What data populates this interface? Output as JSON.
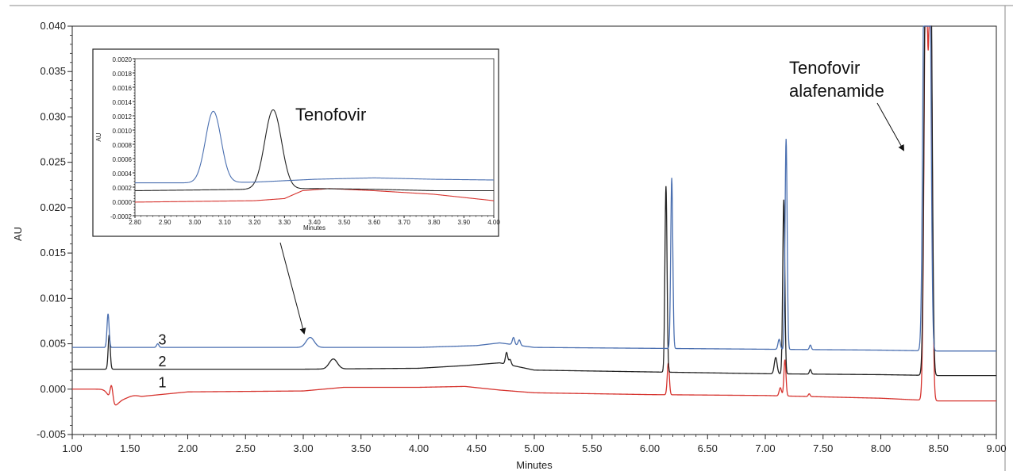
{
  "chart_data": {
    "type": "line",
    "xlabel": "Minutes",
    "ylabel": "AU",
    "xlim": [
      1.0,
      9.0
    ],
    "ylim": [
      -0.005,
      0.04
    ],
    "x_ticks": [
      "1.00",
      "1.50",
      "2.00",
      "2.50",
      "3.00",
      "3.50",
      "4.00",
      "4.50",
      "5.00",
      "5.50",
      "6.00",
      "6.50",
      "7.00",
      "7.50",
      "8.00",
      "8.50",
      "9.00"
    ],
    "y_ticks": [
      "-0.005",
      "0.000",
      "0.005",
      "0.010",
      "0.015",
      "0.020",
      "0.025",
      "0.030",
      "0.035",
      "0.040"
    ],
    "grid": false,
    "series": [
      {
        "name": "1",
        "color": "#d6332e",
        "baseline": [
          [
            1.0,
            0.0
          ],
          [
            1.3,
            0.0
          ],
          [
            1.6,
            -0.0008
          ],
          [
            2.0,
            -0.0003
          ],
          [
            3.0,
            -0.0002
          ],
          [
            3.35,
            0.0002
          ],
          [
            4.0,
            0.0002
          ],
          [
            4.4,
            0.0003
          ],
          [
            4.7,
            -0.0001
          ],
          [
            5.0,
            -0.0004
          ],
          [
            6.0,
            -0.0006
          ],
          [
            7.0,
            -0.0007
          ],
          [
            8.0,
            -0.001
          ],
          [
            8.5,
            -0.0013
          ],
          [
            9.0,
            -0.0013
          ]
        ],
        "peaks": [
          {
            "t": 1.34,
            "h": 0.0018,
            "w": 0.012
          },
          {
            "t": 1.36,
            "h": -0.0014,
            "w": 0.04
          },
          {
            "t": 1.44,
            "h": -0.0006,
            "w": 0.05
          },
          {
            "t": 6.16,
            "h": 0.0035,
            "w": 0.009
          },
          {
            "t": 7.13,
            "h": 0.0009,
            "w": 0.01
          },
          {
            "t": 7.17,
            "h": 0.004,
            "w": 0.009
          },
          {
            "t": 7.38,
            "h": 0.0003,
            "w": 0.008
          },
          {
            "t": 8.39,
            "h": 0.05,
            "w": 0.015
          },
          {
            "t": 8.43,
            "h": 0.05,
            "w": 0.014
          }
        ]
      },
      {
        "name": "2",
        "color": "#222222",
        "baseline": [
          [
            1.0,
            0.0022
          ],
          [
            1.3,
            0.0022
          ],
          [
            2.0,
            0.0022
          ],
          [
            3.0,
            0.0022
          ],
          [
            4.0,
            0.0023
          ],
          [
            4.4,
            0.0026
          ],
          [
            4.7,
            0.0029
          ],
          [
            5.0,
            0.0021
          ],
          [
            6.0,
            0.0019
          ],
          [
            7.0,
            0.0017
          ],
          [
            8.0,
            0.0016
          ],
          [
            8.5,
            0.0015
          ],
          [
            9.0,
            0.0015
          ]
        ],
        "peaks": [
          {
            "t": 1.32,
            "h": 0.0038,
            "w": 0.009
          },
          {
            "t": 3.26,
            "h": 0.0011,
            "w": 0.035
          },
          {
            "t": 4.76,
            "h": 0.0013,
            "w": 0.01
          },
          {
            "t": 4.79,
            "h": 0.0006,
            "w": 0.01
          },
          {
            "t": 6.14,
            "h": 0.0205,
            "w": 0.009
          },
          {
            "t": 7.09,
            "h": 0.0018,
            "w": 0.012
          },
          {
            "t": 7.16,
            "h": 0.0192,
            "w": 0.009
          },
          {
            "t": 7.39,
            "h": 0.0005,
            "w": 0.008
          },
          {
            "t": 8.39,
            "h": 0.05,
            "w": 0.015
          },
          {
            "t": 8.43,
            "h": 0.05,
            "w": 0.014
          }
        ]
      },
      {
        "name": "3",
        "color": "#4a6fb0",
        "baseline": [
          [
            1.0,
            0.0046
          ],
          [
            1.3,
            0.0046
          ],
          [
            2.0,
            0.0046
          ],
          [
            3.0,
            0.0046
          ],
          [
            4.0,
            0.0046
          ],
          [
            4.5,
            0.0048
          ],
          [
            4.7,
            0.0051
          ],
          [
            5.0,
            0.0046
          ],
          [
            6.0,
            0.0045
          ],
          [
            7.0,
            0.0044
          ],
          [
            8.0,
            0.0043
          ],
          [
            8.5,
            0.0042
          ],
          [
            9.0,
            0.0042
          ]
        ],
        "peaks": [
          {
            "t": 1.31,
            "h": 0.0037,
            "w": 0.009
          },
          {
            "t": 1.74,
            "h": 0.0004,
            "w": 0.01
          },
          {
            "t": 3.06,
            "h": 0.0011,
            "w": 0.035
          },
          {
            "t": 4.82,
            "h": 0.0008,
            "w": 0.01
          },
          {
            "t": 4.87,
            "h": 0.0006,
            "w": 0.01
          },
          {
            "t": 6.19,
            "h": 0.0188,
            "w": 0.009
          },
          {
            "t": 7.12,
            "h": 0.0011,
            "w": 0.01
          },
          {
            "t": 7.18,
            "h": 0.0232,
            "w": 0.009
          },
          {
            "t": 7.39,
            "h": 0.0005,
            "w": 0.008
          },
          {
            "t": 8.38,
            "h": 0.05,
            "w": 0.015
          },
          {
            "t": 8.42,
            "h": 0.05,
            "w": 0.014
          }
        ]
      }
    ],
    "trace_labels": [
      {
        "text": "1",
        "x": 1.78,
        "y": 0.0002
      },
      {
        "text": "2",
        "x": 1.78,
        "y": 0.0025
      },
      {
        "text": "3",
        "x": 1.78,
        "y": 0.0049
      }
    ],
    "annotations": {
      "tenofovir": "Tenofovir",
      "taf_line1": "Tenofovir",
      "taf_line2": "alafenamide"
    },
    "inset": {
      "xlabel": "Minutes",
      "ylabel": "AU",
      "xlim": [
        2.8,
        4.0
      ],
      "ylim": [
        -0.0002,
        0.002
      ],
      "x_ticks": [
        "2.80",
        "2.90",
        "3.00",
        "3.10",
        "3.20",
        "3.30",
        "3.40",
        "3.50",
        "3.60",
        "3.70",
        "3.80",
        "3.90",
        "4.00"
      ],
      "y_ticks": [
        "-0.0002",
        "0.0000",
        "0.0002",
        "0.0004",
        "0.0006",
        "0.0008",
        "0.0010",
        "0.0012",
        "0.0014",
        "0.0016",
        "0.0018",
        "0.0020"
      ],
      "series": [
        {
          "name": "1",
          "color": "#d6332e",
          "baseline": [
            [
              2.8,
              -1e-05
            ],
            [
              3.2,
              1e-05
            ],
            [
              3.3,
              4e-05
            ],
            [
              3.36,
              0.00015
            ],
            [
              3.45,
              0.00018
            ],
            [
              3.6,
              0.00015
            ],
            [
              3.8,
              0.0001
            ],
            [
              4.0,
              1e-05
            ]
          ],
          "peaks": []
        },
        {
          "name": "2",
          "color": "#222222",
          "baseline": [
            [
              2.8,
              0.00015
            ],
            [
              3.0,
              0.00016
            ],
            [
              3.2,
              0.00017
            ],
            [
              3.4,
              0.00018
            ],
            [
              3.6,
              0.00017
            ],
            [
              3.8,
              0.00015
            ],
            [
              4.0,
              0.00015
            ]
          ],
          "peaks": [
            {
              "t": 3.262,
              "h": 0.00111,
              "w": 0.028
            }
          ]
        },
        {
          "name": "3",
          "color": "#4a6fb0",
          "baseline": [
            [
              2.8,
              0.00026
            ],
            [
              3.0,
              0.00026
            ],
            [
              3.2,
              0.00027
            ],
            [
              3.4,
              0.00031
            ],
            [
              3.6,
              0.00033
            ],
            [
              3.8,
              0.00031
            ],
            [
              4.0,
              0.0003
            ]
          ],
          "peaks": [
            {
              "t": 3.062,
              "h": 0.001,
              "w": 0.026
            }
          ]
        }
      ]
    }
  }
}
